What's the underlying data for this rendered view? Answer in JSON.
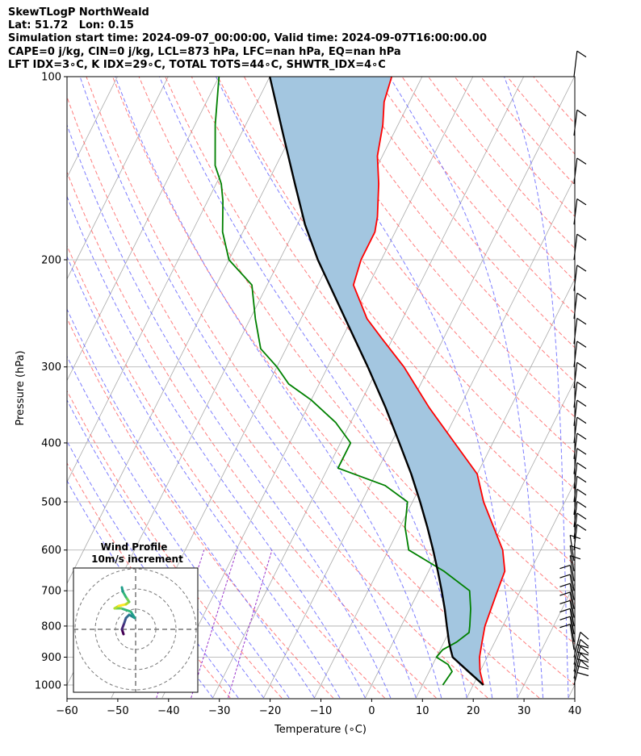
{
  "header": {
    "line1": "SkewTLogP NorthWeald",
    "line2": "Lat: 51.72   Lon: 0.15",
    "line3": "Simulation start time: 2024-09-07_00:00:00, Valid time: 2024-09-07T16:00:00.00",
    "line4": "CAPE=0 j/kg, CIN=0 j/kg, LCL=873 hPa, LFC=nan hPa, EQ=nan hPa",
    "line5": "LFT IDX=3∘C, K IDX=29∘C, TOTAL TOTS=44∘C, SHWTR_IDX=4∘C"
  },
  "chart_data": {
    "type": "line",
    "subtype": "skew-t log-p",
    "xlabel": "Temperature (∘C)",
    "ylabel": "Pressure (hPa)",
    "xlim": [
      -60,
      40
    ],
    "ylim": [
      1050,
      100
    ],
    "x_ticks": [
      -60,
      -50,
      -40,
      -30,
      -20,
      -10,
      0,
      10,
      20,
      30,
      40
    ],
    "x_tick_labels": [
      "−60",
      "−50",
      "−40",
      "−30",
      "−20",
      "−10",
      "0",
      "10",
      "20",
      "30",
      "40"
    ],
    "y_ticks": [
      1000,
      900,
      800,
      700,
      600,
      500,
      400,
      300,
      200,
      100
    ],
    "y_tick_labels": [
      "1000",
      "900",
      "800",
      "700",
      "600",
      "500",
      "400",
      "300",
      "200",
      "100"
    ],
    "grid": true,
    "colors": {
      "temperature": "#ff0000",
      "dewpoint": "#008000",
      "parcel": "#000000",
      "cape_fill": "#a3c6e0",
      "dry_adiabats": "#ff6666",
      "moist_adiabats": "#6666ff",
      "mixing_ratio": "#9933cc",
      "isotherms": "#aaaaaa"
    },
    "series": [
      {
        "name": "Temperature",
        "points": [
          [
            1000,
            22
          ],
          [
            950,
            20
          ],
          [
            900,
            18.5
          ],
          [
            850,
            17.5
          ],
          [
            800,
            16.5
          ],
          [
            700,
            15.5
          ],
          [
            650,
            15
          ],
          [
            600,
            12.5
          ],
          [
            500,
            4
          ],
          [
            450,
            0
          ],
          [
            400,
            -7.5
          ],
          [
            350,
            -16
          ],
          [
            300,
            -25
          ],
          [
            270,
            -32
          ],
          [
            250,
            -37
          ],
          [
            220,
            -43
          ],
          [
            200,
            -44
          ],
          [
            180,
            -44
          ],
          [
            170,
            -45
          ],
          [
            150,
            -48
          ],
          [
            135,
            -51
          ],
          [
            120,
            -53
          ],
          [
            110,
            -55
          ],
          [
            100,
            -56
          ]
        ]
      },
      {
        "name": "Dewpoint",
        "points": [
          [
            1000,
            14
          ],
          [
            950,
            14.5
          ],
          [
            925,
            13
          ],
          [
            900,
            10
          ],
          [
            875,
            10.5
          ],
          [
            850,
            12.5
          ],
          [
            820,
            14
          ],
          [
            800,
            13.5
          ],
          [
            750,
            12
          ],
          [
            700,
            10
          ],
          [
            650,
            3
          ],
          [
            600,
            -6
          ],
          [
            550,
            -9
          ],
          [
            500,
            -11
          ],
          [
            470,
            -17
          ],
          [
            440,
            -28
          ],
          [
            400,
            -28
          ],
          [
            370,
            -33
          ],
          [
            340,
            -40
          ],
          [
            320,
            -46
          ],
          [
            300,
            -50
          ],
          [
            280,
            -55
          ],
          [
            250,
            -59
          ],
          [
            220,
            -63
          ],
          [
            200,
            -70
          ],
          [
            180,
            -74
          ],
          [
            160,
            -77
          ],
          [
            150,
            -79
          ],
          [
            140,
            -82
          ],
          [
            120,
            -86
          ],
          [
            100,
            -90
          ]
        ]
      },
      {
        "name": "Parcel",
        "points": [
          [
            1000,
            22
          ],
          [
            950,
            17.7
          ],
          [
            900,
            13.2
          ],
          [
            873,
            12
          ],
          [
            850,
            11
          ],
          [
            800,
            9
          ],
          [
            750,
            6.9
          ],
          [
            700,
            4.5
          ],
          [
            650,
            1.8
          ],
          [
            600,
            -1.2
          ],
          [
            550,
            -4.6
          ],
          [
            500,
            -8.5
          ],
          [
            450,
            -13
          ],
          [
            400,
            -18.4
          ],
          [
            350,
            -24.6
          ],
          [
            300,
            -32.1
          ],
          [
            250,
            -41.3
          ],
          [
            200,
            -52.5
          ],
          [
            175,
            -58.5
          ],
          [
            150,
            -64.5
          ],
          [
            125,
            -71.5
          ],
          [
            100,
            -80
          ]
        ]
      }
    ],
    "wind_profile": {
      "title_line1": "Wind Profile",
      "title_line2": "10m/s increment"
    }
  }
}
